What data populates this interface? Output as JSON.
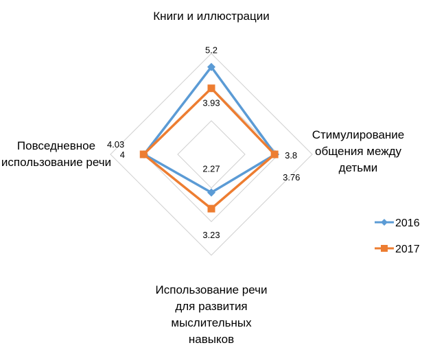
{
  "chart_data": {
    "type": "radar",
    "categories": [
      "Книги и иллюстрации",
      "Стимулирование общения между детьми",
      "Использование речи для развития мыслительных навыков",
      "Повседневное использование речи"
    ],
    "category_lines": [
      [
        "Книги и иллюстрации"
      ],
      [
        "Стимулирование",
        "общения между",
        "детьми"
      ],
      [
        "Использование речи",
        "для развития",
        "мыслительных",
        "навыков"
      ],
      [
        "Повседневное",
        "использование речи"
      ]
    ],
    "series": [
      {
        "name": "2016",
        "values": [
          5.2,
          3.8,
          2.27,
          4
        ],
        "labels": [
          "5.2",
          "3.8",
          "2.27",
          "4"
        ],
        "color": "#5B9BD5",
        "marker": "diamond"
      },
      {
        "name": "2017",
        "values": [
          3.93,
          3.76,
          3.23,
          4.03
        ],
        "labels": [
          "3.93",
          "3.76",
          "3.23",
          "4.03"
        ],
        "color": "#ED7D31",
        "marker": "square"
      }
    ],
    "rlim": [
      0,
      6
    ],
    "gridlines": [
      2,
      4,
      6
    ],
    "legend_position": "right"
  }
}
